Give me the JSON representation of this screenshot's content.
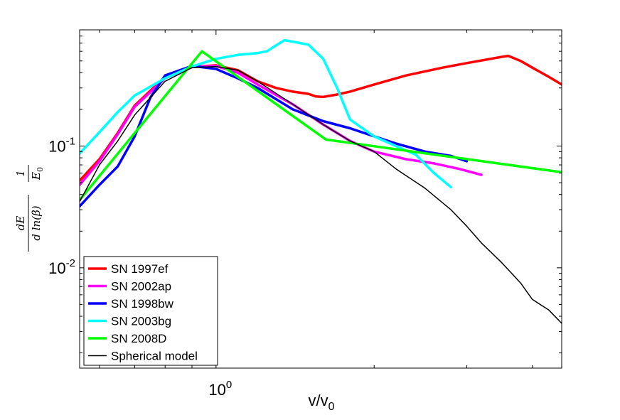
{
  "chart_data": {
    "type": "line",
    "xscale": "log",
    "yscale": "log",
    "xlim": [
      0.55,
      4.55
    ],
    "ylim": [
      0.0015,
      0.9
    ],
    "xlabel": {
      "base": "v/v",
      "sub": "0"
    },
    "ylabel": {
      "num1": "dE",
      "den1": "d ln(β)",
      "num2": "1",
      "den2": "E",
      "den2_sub": "0"
    },
    "xticks": [
      {
        "value": 1,
        "base": "10",
        "exp": "0"
      }
    ],
    "yticks": [
      {
        "value": 0.1,
        "base": "10",
        "exp": "-1"
      },
      {
        "value": 0.01,
        "base": "10",
        "exp": "-2"
      }
    ],
    "legend_position": "bottom-left",
    "series": [
      {
        "name": "SN 1997ef",
        "color": "#ff0000",
        "width": 3.5,
        "x": [
          0.55,
          0.6,
          0.65,
          0.7,
          0.8,
          0.9,
          1.0,
          1.1,
          1.2,
          1.3,
          1.4,
          1.5,
          1.55,
          1.6,
          1.7,
          1.8,
          2.0,
          2.3,
          2.7,
          3.0,
          3.5,
          3.6,
          3.8,
          4.0,
          4.3,
          4.55
        ],
        "y": [
          0.052,
          0.078,
          0.128,
          0.215,
          0.37,
          0.445,
          0.46,
          0.42,
          0.34,
          0.3,
          0.28,
          0.268,
          0.255,
          0.253,
          0.265,
          0.28,
          0.32,
          0.38,
          0.44,
          0.48,
          0.54,
          0.55,
          0.5,
          0.44,
          0.37,
          0.32
        ]
      },
      {
        "name": "SN 2002ap",
        "color": "#ff00ff",
        "width": 3.5,
        "x": [
          0.55,
          0.6,
          0.65,
          0.7,
          0.8,
          0.9,
          1.0,
          1.1,
          1.2,
          1.4,
          1.6,
          1.8,
          2.0,
          2.3,
          2.6,
          2.9,
          3.2
        ],
        "y": [
          0.048,
          0.075,
          0.125,
          0.21,
          0.36,
          0.445,
          0.455,
          0.4,
          0.32,
          0.22,
          0.15,
          0.11,
          0.09,
          0.078,
          0.072,
          0.065,
          0.058
        ]
      },
      {
        "name": "SN 1998bw",
        "color": "#0000ff",
        "width": 3.5,
        "x": [
          0.55,
          0.6,
          0.65,
          0.7,
          0.75,
          0.8,
          0.9,
          1.0,
          1.1,
          1.2,
          1.4,
          1.6,
          1.8,
          2.0,
          2.2,
          2.5,
          2.8,
          3.0
        ],
        "y": [
          0.032,
          0.048,
          0.068,
          0.12,
          0.25,
          0.38,
          0.455,
          0.43,
          0.36,
          0.3,
          0.2,
          0.16,
          0.14,
          0.12,
          0.105,
          0.09,
          0.083,
          0.075
        ]
      },
      {
        "name": "SN 2003bg",
        "color": "#00ffff",
        "width": 3.5,
        "x": [
          0.55,
          0.6,
          0.65,
          0.7,
          0.8,
          0.9,
          1.0,
          1.1,
          1.2,
          1.25,
          1.3,
          1.35,
          1.4,
          1.5,
          1.6,
          1.7,
          1.8,
          2.0,
          2.2,
          2.4,
          2.6,
          2.8
        ],
        "y": [
          0.087,
          0.13,
          0.19,
          0.26,
          0.36,
          0.45,
          0.52,
          0.56,
          0.58,
          0.6,
          0.67,
          0.74,
          0.72,
          0.68,
          0.52,
          0.3,
          0.165,
          0.12,
          0.1,
          0.085,
          0.06,
          0.046
        ]
      },
      {
        "name": "SN 2008D",
        "color": "#00ff00",
        "width": 3.5,
        "x": [
          0.55,
          0.94,
          1.62,
          4.55
        ],
        "y": [
          0.036,
          0.6,
          0.113,
          0.061
        ]
      },
      {
        "name": "Spherical model",
        "color": "#000000",
        "width": 1.5,
        "x": [
          0.55,
          0.6,
          0.65,
          0.7,
          0.8,
          0.9,
          1.0,
          1.1,
          1.2,
          1.4,
          1.6,
          1.8,
          2.0,
          2.2,
          2.5,
          2.8,
          3.0,
          3.2,
          3.5,
          3.8,
          4.0,
          4.3,
          4.55
        ],
        "y": [
          0.035,
          0.07,
          0.11,
          0.18,
          0.34,
          0.44,
          0.45,
          0.42,
          0.34,
          0.22,
          0.15,
          0.11,
          0.09,
          0.065,
          0.045,
          0.03,
          0.022,
          0.016,
          0.011,
          0.0075,
          0.0055,
          0.0045,
          0.0035
        ]
      }
    ]
  }
}
